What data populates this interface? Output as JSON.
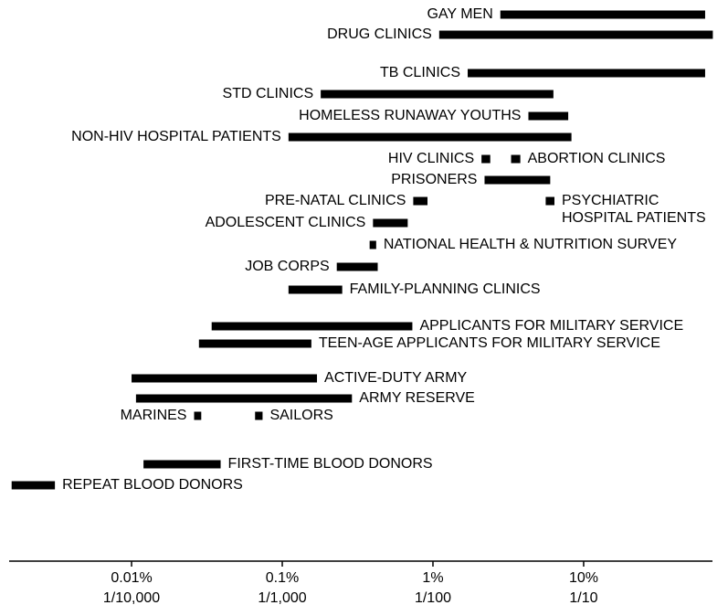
{
  "chart_data": {
    "type": "range-bar",
    "categories": [
      "GAY MEN",
      "DRUG CLINICS",
      "TB CLINICS",
      "STD CLINICS",
      "HOMELESS RUNAWAY YOUTHS",
      "NON-HIV HOSPITAL PATIENTS",
      "HIV CLINICS",
      "ABORTION CLINICS",
      "PRISONERS",
      "PRE-NATAL CLINICS",
      "PSYCHIATRIC\nHOSPITAL PATIENTS",
      "ADOLESCENT CLINICS",
      "NATIONAL HEALTH & NUTRITION SURVEY",
      "JOB CORPS",
      "FAMILY-PLANNING CLINICS",
      "APPLICANTS FOR MILITARY SERVICE",
      "TEEN-AGE APPLICANTS FOR MILITARY SERVICE",
      "ACTIVE-DUTY ARMY",
      "ARMY RESERVE",
      "MARINES",
      "SAILORS",
      "FIRST-TIME BLOOD DONORS",
      "REPEAT BLOOD DONORS"
    ],
    "values": [
      [
        2.8,
        64
      ],
      [
        1.1,
        72
      ],
      [
        1.7,
        64
      ],
      [
        0.18,
        6.3
      ],
      [
        4.3,
        7.9
      ],
      [
        0.11,
        8.3
      ],
      [
        2.1,
        2.4
      ],
      [
        3.3,
        3.8
      ],
      [
        2.2,
        6.0
      ],
      [
        0.74,
        0.92
      ],
      [
        5.6,
        6.4
      ],
      [
        0.4,
        0.68
      ],
      [
        0.38,
        0.42
      ],
      [
        0.23,
        0.43
      ],
      [
        0.11,
        0.25
      ],
      [
        0.034,
        0.73
      ],
      [
        0.028,
        0.156
      ],
      [
        0.01,
        0.17
      ],
      [
        0.0107,
        0.29
      ],
      [
        0.026,
        0.029
      ],
      [
        0.066,
        0.074
      ],
      [
        0.012,
        0.039
      ],
      [
        0.0016,
        0.0031
      ]
    ],
    "color": "#000000",
    "xscale": "log",
    "xlim": [
      0.00154,
      71.6
    ],
    "xticks": [
      {
        "value": 0.01,
        "label": "0.01%"
      },
      {
        "value": 0.1,
        "label": "0.1%"
      },
      {
        "value": 1,
        "label": "1%"
      },
      {
        "value": 10,
        "label": "10%"
      }
    ],
    "xtick_fractions": [
      "1/10,000",
      "1/1,000",
      "1/100",
      "1/10"
    ]
  }
}
